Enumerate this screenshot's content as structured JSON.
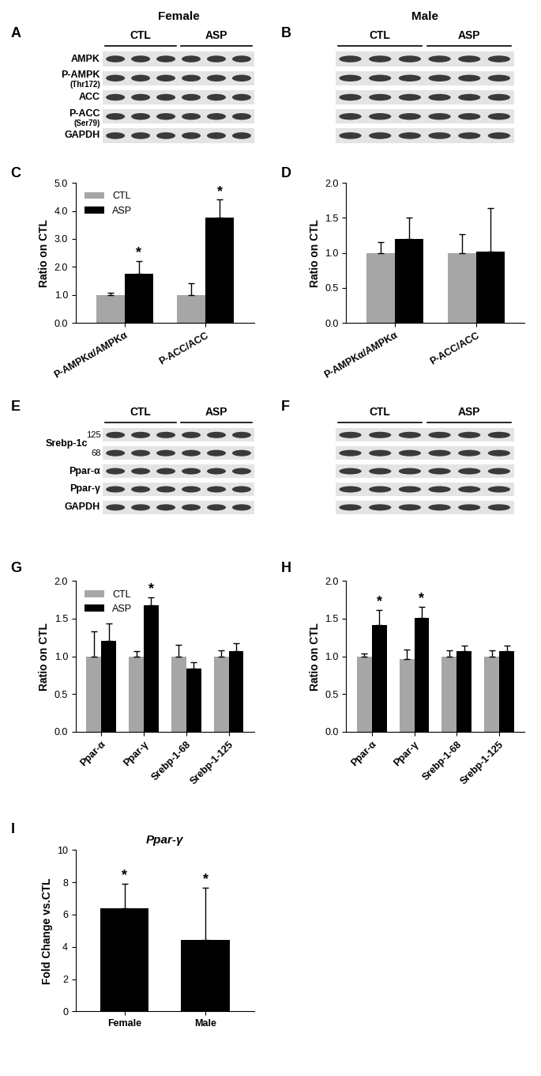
{
  "blots": [
    {
      "panel": "A",
      "title": "Female",
      "groups": [
        {
          "name": "CTL",
          "lanes": 3
        },
        {
          "name": "ASP",
          "lanes": 3
        }
      ],
      "rows": [
        {
          "label": "AMPK"
        },
        {
          "label": "P-AMPK",
          "sublabel": "(Thr172)"
        },
        {
          "label": "ACC"
        },
        {
          "label": "P-ACC",
          "sublabel": "(Ser79)"
        },
        {
          "label": "GAPDH"
        }
      ]
    },
    {
      "panel": "B",
      "title": "Male",
      "groups": [
        {
          "name": "CTL",
          "lanes": 3
        },
        {
          "name": "ASP",
          "lanes": 3
        }
      ],
      "row_count": 5
    },
    {
      "panel": "E",
      "groups": [
        {
          "name": "CTL",
          "lanes": 3
        },
        {
          "name": "ASP",
          "lanes": 3
        }
      ],
      "rows": [
        {
          "label": "Srebp-1c",
          "markers": [
            "125",
            "68"
          ]
        },
        {
          "label": "Ppar-α"
        },
        {
          "label": "Ppar-γ"
        },
        {
          "label": "GAPDH"
        }
      ]
    },
    {
      "panel": "F",
      "groups": [
        {
          "name": "CTL",
          "lanes": 3
        },
        {
          "name": "ASP",
          "lanes": 3
        }
      ],
      "row_count": 5
    }
  ],
  "chart_data": [
    {
      "panel": "C",
      "type": "bar",
      "ylabel": "Ratio on CTL",
      "categories": [
        "P-AMPKα/AMPKα",
        "P-ACC/ACC"
      ],
      "series": [
        {
          "name": "CTL",
          "color": "#a6a6a6",
          "values": [
            1.0,
            1.0
          ],
          "errors": [
            0.08,
            0.4
          ]
        },
        {
          "name": "ASP",
          "color": "#000000",
          "values": [
            1.75,
            3.75
          ],
          "errors": [
            0.45,
            0.65
          ],
          "significance": [
            "*",
            "*"
          ]
        }
      ],
      "ylim": [
        0,
        5
      ],
      "yticks": [
        {
          "value": 0,
          "label": "0.0"
        },
        {
          "value": 1,
          "label": "1.0"
        },
        {
          "value": 2,
          "label": "2.0"
        },
        {
          "value": 3,
          "label": "3.0"
        },
        {
          "value": 4,
          "label": "4.0"
        },
        {
          "value": 5,
          "label": "5.0"
        }
      ],
      "legend": "upper left"
    },
    {
      "panel": "D",
      "type": "bar",
      "ylabel": "Ratio on CTL",
      "categories": [
        "P-AMPKα/AMPKα",
        "P-ACC/ACC"
      ],
      "series": [
        {
          "color": "#a6a6a6",
          "values": [
            1.0,
            1.0
          ],
          "errors": [
            0.15,
            0.27
          ]
        },
        {
          "color": "#000000",
          "values": [
            1.2,
            1.02
          ],
          "errors": [
            0.3,
            0.62
          ]
        }
      ],
      "ylim": [
        0,
        2
      ],
      "yticks": [
        {
          "value": 0,
          "label": "0.0"
        },
        {
          "value": 0.5,
          "label": "0.5"
        },
        {
          "value": 1,
          "label": "1.0"
        },
        {
          "value": 1.5,
          "label": "1.5"
        },
        {
          "value": 2,
          "label": "2.0"
        }
      ]
    },
    {
      "panel": "G",
      "type": "bar",
      "ylabel": "Ratio on CTL",
      "categories": [
        "Ppar-α",
        "Ppar-γ",
        "Srebp-1-68",
        "Srebp-1-125"
      ],
      "series": [
        {
          "name": "CTL",
          "color": "#a6a6a6",
          "values": [
            1.0,
            1.0,
            1.0,
            1.0
          ],
          "errors": [
            0.33,
            0.07,
            0.15,
            0.08
          ]
        },
        {
          "name": "ASP",
          "color": "#000000",
          "values": [
            1.21,
            1.68,
            0.84,
            1.07
          ],
          "errors": [
            0.23,
            0.1,
            0.08,
            0.1
          ],
          "significance": [
            null,
            "*",
            null,
            null
          ]
        }
      ],
      "ylim": [
        0,
        2
      ],
      "yticks": [
        {
          "value": 0,
          "label": "0.0"
        },
        {
          "value": 0.5,
          "label": "0.5"
        },
        {
          "value": 1,
          "label": "1.0"
        },
        {
          "value": 1.5,
          "label": "1.5"
        },
        {
          "value": 2,
          "label": "2.0"
        }
      ],
      "legend": "upper left"
    },
    {
      "panel": "H",
      "type": "bar",
      "ylabel": "Ratio on CTL",
      "categories": [
        "Ppar-α",
        "Ppar-γ",
        "Srebp-1-68",
        "Srebp-1-125"
      ],
      "series": [
        {
          "color": "#a6a6a6",
          "values": [
            1.0,
            0.96,
            1.0,
            1.0
          ],
          "errors": [
            0.04,
            0.13,
            0.08,
            0.08
          ]
        },
        {
          "color": "#000000",
          "values": [
            1.42,
            1.51,
            1.07,
            1.07
          ],
          "errors": [
            0.2,
            0.15,
            0.07,
            0.07
          ],
          "significance": [
            "*",
            "*",
            null,
            null
          ]
        }
      ],
      "ylim": [
        0,
        2
      ],
      "yticks": [
        {
          "value": 0,
          "label": "0.0"
        },
        {
          "value": 0.5,
          "label": "0.5"
        },
        {
          "value": 1,
          "label": "1.0"
        },
        {
          "value": 1.5,
          "label": "1.5"
        },
        {
          "value": 2,
          "label": "2.0"
        }
      ]
    },
    {
      "panel": "I",
      "type": "bar",
      "title": "Ppar-γ",
      "ylabel": "Fold Change vs.CTL",
      "categories": [
        "Female",
        "Male"
      ],
      "values": [
        6.4,
        4.45
      ],
      "errors": [
        1.5,
        3.2
      ],
      "significance": [
        "*",
        "*"
      ],
      "color": "#000000",
      "ylim": [
        0,
        10
      ],
      "yticks": [
        0,
        2,
        4,
        6,
        8,
        10
      ]
    }
  ]
}
